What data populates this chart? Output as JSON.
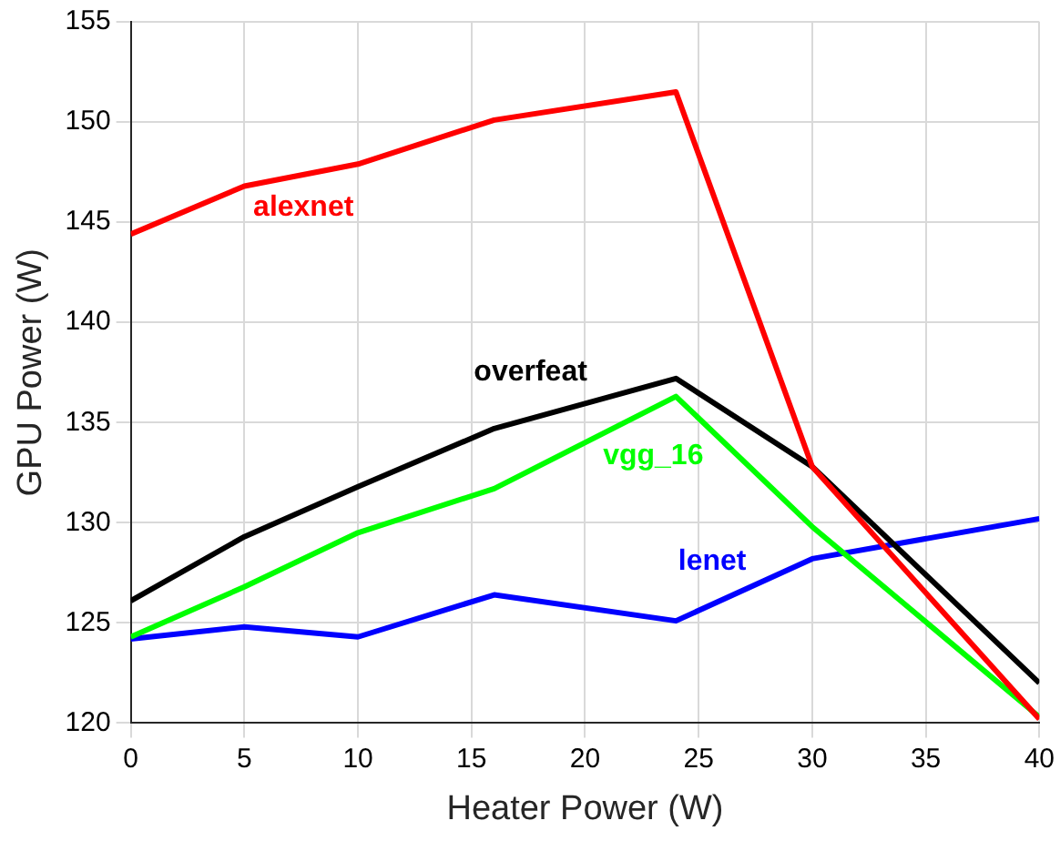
{
  "chart_data": {
    "type": "line",
    "xlabel": "Heater Power (W)",
    "ylabel": "GPU Power (W)",
    "x": [
      0,
      5,
      10,
      16,
      24,
      30,
      40
    ],
    "series": [
      {
        "name": "alexnet",
        "color": "#ff0000",
        "values": [
          144.4,
          146.8,
          147.9,
          150.1,
          151.5,
          132.8,
          120.2
        ]
      },
      {
        "name": "overfeat",
        "color": "#000000",
        "values": [
          126.1,
          129.3,
          131.8,
          134.7,
          137.2,
          132.8,
          122
        ]
      },
      {
        "name": "vgg_16",
        "color": "#00ff00",
        "values": [
          124.3,
          126.8,
          129.5,
          131.7,
          136.3,
          129.8,
          120.3
        ]
      },
      {
        "name": "lenet",
        "color": "#0000ff",
        "values": [
          124.2,
          124.8,
          124.3,
          126.4,
          125.1,
          128.2,
          130.2
        ]
      }
    ],
    "xlim": [
      0,
      40
    ],
    "xticks": [
      0,
      5,
      10,
      15,
      20,
      25,
      30,
      35,
      40
    ],
    "ylim": [
      120,
      155
    ],
    "yticks": [
      120,
      125,
      130,
      135,
      140,
      145,
      150,
      155
    ],
    "grid": true,
    "legend": false,
    "marker": "none",
    "line_style": "solid"
  }
}
